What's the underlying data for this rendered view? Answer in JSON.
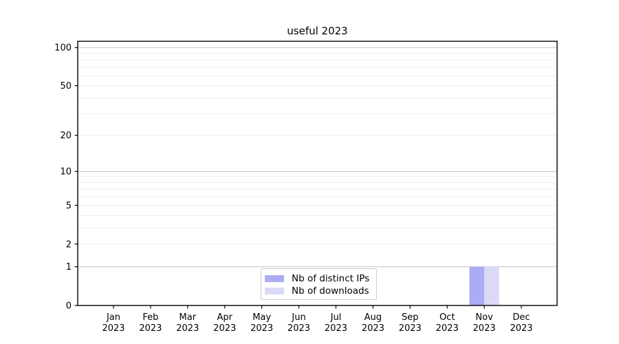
{
  "figure": {
    "title": "useful 2023"
  },
  "legend": {
    "items": [
      {
        "label": "Nb of distinct IPs",
        "color": "#acacf4"
      },
      {
        "label": "Nb of downloads",
        "color": "#dadaf7"
      }
    ]
  },
  "chart_data": {
    "type": "bar",
    "title": "useful 2023",
    "categories": [
      "Jan",
      "Feb",
      "Mar",
      "Apr",
      "May",
      "Jun",
      "Jul",
      "Aug",
      "Sep",
      "Oct",
      "Nov",
      "Dec"
    ],
    "year_label": "2023",
    "series": [
      {
        "name": "Nb of distinct IPs",
        "color": "#acacf4",
        "values": [
          0,
          0,
          0,
          0,
          0,
          0,
          0,
          0,
          0,
          0,
          1,
          0
        ]
      },
      {
        "name": "Nb of downloads",
        "color": "#dadaf7",
        "values": [
          0,
          0,
          0,
          0,
          0,
          0,
          0,
          0,
          0,
          0,
          1,
          0
        ]
      }
    ],
    "xlabel": "",
    "ylabel": "",
    "yscale": "log1p",
    "ylim": [
      0,
      112
    ],
    "yticks": [
      0,
      1,
      2,
      5,
      10,
      20,
      50,
      100
    ],
    "major_grid_values": [
      1,
      10,
      100
    ],
    "minor_grid_values": [
      2,
      3,
      4,
      5,
      6,
      7,
      8,
      9,
      20,
      30,
      40,
      50,
      60,
      70,
      80,
      90
    ],
    "grid": true,
    "legend_position": "lower center inside plot",
    "colors": {
      "major_grid": "#c4c4c4",
      "minor_grid": "#ececec",
      "spine": "#000000",
      "text": "#000000"
    }
  }
}
